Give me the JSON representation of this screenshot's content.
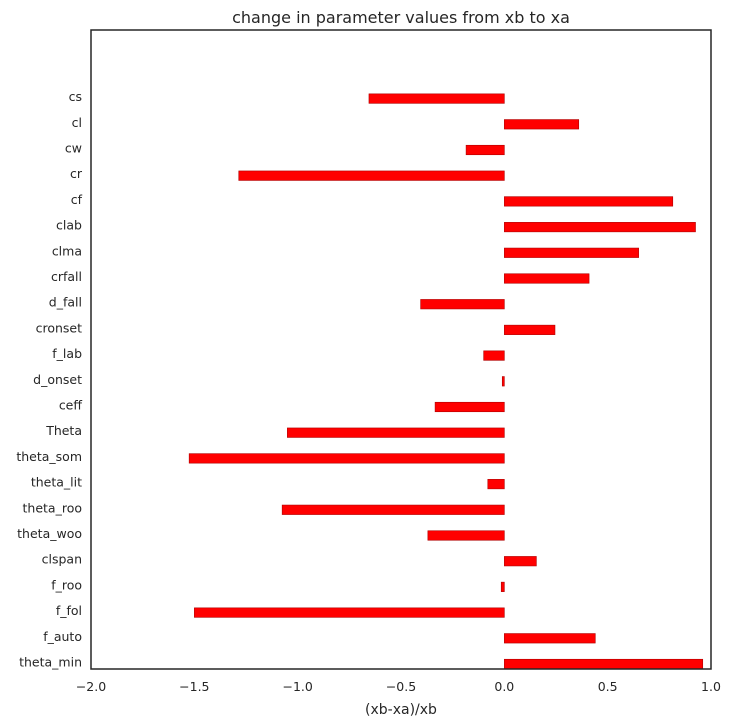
{
  "chart_data": {
    "type": "bar",
    "orientation": "horizontal",
    "title": "change in parameter values from xb to xa",
    "xlabel": "(xb-xa)/xb",
    "ylabel": "",
    "xlim": [
      -2.0,
      1.0
    ],
    "xticks": [
      -2.0,
      -1.5,
      -1.0,
      -0.5,
      0.0,
      0.5,
      1.0
    ],
    "xtick_labels": [
      "−2.0",
      "−1.5",
      "−1.0",
      "−0.5",
      "0.0",
      "0.5",
      "1.0"
    ],
    "grid": false,
    "bar_color": "#ff0000",
    "bar_edge_color": "#b00000",
    "frame_color": "#262626",
    "categories": [
      "theta_min",
      "f_auto",
      "f_fol",
      "f_roo",
      "clspan",
      "theta_woo",
      "theta_roo",
      "theta_lit",
      "theta_som",
      "Theta",
      "ceff",
      "d_onset",
      "f_lab",
      "cronset",
      "d_fall",
      "crfall",
      "clma",
      "clab",
      "cf",
      "cr",
      "cw",
      "cl",
      "cs"
    ],
    "values": [
      0.96,
      0.44,
      -1.5,
      -0.015,
      0.155,
      -0.37,
      -1.075,
      -0.08,
      -1.525,
      -1.05,
      -0.335,
      -0.01,
      -0.1,
      0.245,
      -0.405,
      0.41,
      0.65,
      0.925,
      0.815,
      -1.285,
      -0.185,
      0.36,
      -0.655
    ]
  }
}
